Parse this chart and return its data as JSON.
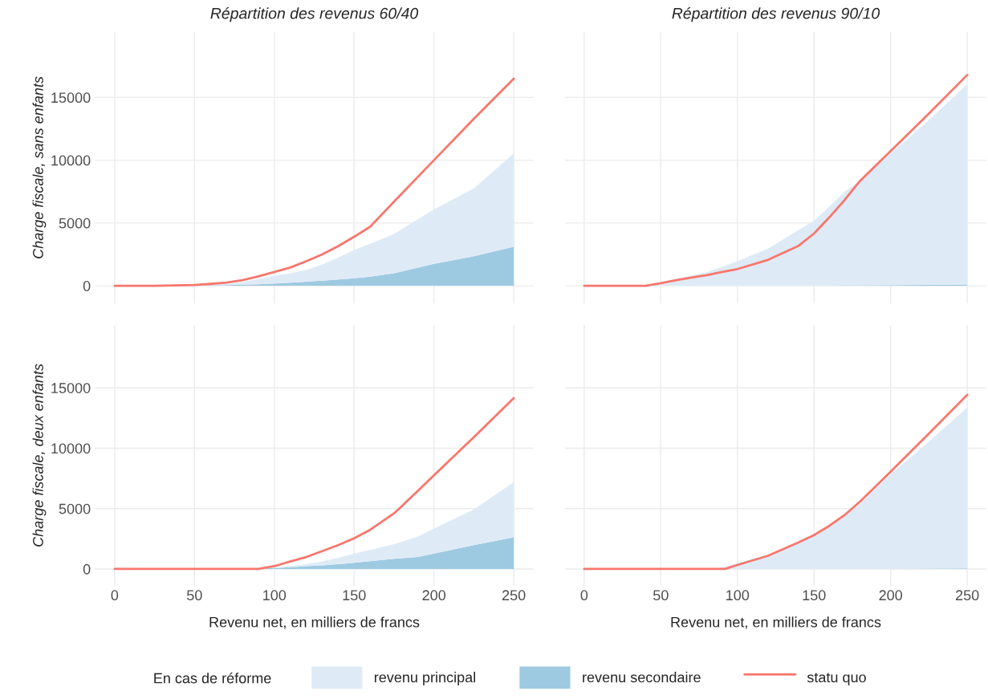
{
  "chart_data": [
    {
      "type": "area",
      "stacked": true,
      "title": "Répartition des revenus 60/40",
      "ylabel": "Charge fiscale, sans enfants",
      "legend_title": "En cas de réforme",
      "legend": "bottom",
      "grid": true,
      "tick_labels": "y",
      "x": [
        0,
        25,
        50,
        60,
        70,
        80,
        90,
        100,
        110,
        120,
        130,
        140,
        150,
        160,
        175,
        200,
        225,
        250
      ],
      "xlim": [
        -12.5,
        262.5
      ],
      "xticks": [
        0,
        50,
        100,
        150,
        200,
        250
      ],
      "ylim": [
        -1400,
        20200
      ],
      "yticks": [
        0,
        5000,
        10000,
        15000
      ],
      "series": [
        {
          "name": "revenu secondaire",
          "color": "#9ecae1",
          "values": [
            0,
            0,
            0,
            30,
            60,
            90,
            120,
            180,
            250,
            320,
            400,
            500,
            600,
            720,
            1000,
            1750,
            2350,
            3100
          ]
        },
        {
          "name": "revenu principal",
          "color": "#deebf7",
          "values": [
            0,
            0,
            30,
            50,
            90,
            210,
            430,
            620,
            750,
            930,
            1300,
            1750,
            2250,
            2630,
            3130,
            4330,
            5400,
            7440
          ]
        },
        {
          "name": "statu quo",
          "type": "line",
          "color": "#f8766d",
          "values": [
            0,
            0,
            60,
            150,
            250,
            450,
            750,
            1100,
            1450,
            1950,
            2500,
            3150,
            3900,
            4700,
            6700,
            10000,
            13300,
            16500
          ]
        }
      ]
    },
    {
      "type": "area",
      "stacked": true,
      "title": "Répartition des revenus 90/10",
      "legend": "bottom",
      "grid": true,
      "tick_labels": false,
      "x": [
        0,
        40,
        50,
        60,
        70,
        80,
        90,
        100,
        120,
        140,
        150,
        160,
        170,
        180,
        200,
        225,
        250
      ],
      "xlim": [
        -12.5,
        262.5
      ],
      "xticks": [
        0,
        50,
        100,
        150,
        200,
        250
      ],
      "ylim": [
        -1400,
        20200
      ],
      "yticks": [
        0,
        5000,
        10000,
        15000
      ],
      "series": [
        {
          "name": "revenu secondaire",
          "color": "#9ecae1",
          "values": [
            0,
            0,
            0,
            0,
            0,
            0,
            0,
            0,
            0,
            0,
            20,
            20,
            30,
            30,
            50,
            70,
            100
          ]
        },
        {
          "name": "revenu principal",
          "color": "#deebf7",
          "values": [
            0,
            0,
            250,
            540,
            800,
            1100,
            1500,
            1950,
            2960,
            4440,
            5160,
            6280,
            7470,
            8320,
            10450,
            13130,
            15940
          ]
        },
        {
          "name": "statu quo",
          "type": "line",
          "color": "#f8766d",
          "values": [
            0,
            0,
            200,
            450,
            650,
            850,
            1100,
            1330,
            2060,
            3190,
            4160,
            5450,
            6830,
            8350,
            10720,
            13710,
            16790
          ]
        }
      ]
    },
    {
      "type": "area",
      "stacked": true,
      "ylabel": "Charge fiscale, deux enfants",
      "xlabel": "Revenu net, en milliers de francs",
      "legend": "bottom",
      "grid": true,
      "x": [
        0,
        90,
        100,
        110,
        120,
        130,
        140,
        150,
        160,
        175,
        180,
        190,
        200,
        225,
        250
      ],
      "xlim": [
        -12.5,
        262.5
      ],
      "xticks": [
        0,
        50,
        100,
        150,
        200,
        250
      ],
      "ylim": [
        -1400,
        20200
      ],
      "yticks": [
        0,
        5000,
        10000,
        15000
      ],
      "series": [
        {
          "name": "revenu secondaire",
          "color": "#9ecae1",
          "values": [
            0,
            50,
            80,
            150,
            220,
            300,
            400,
            510,
            650,
            850,
            900,
            990,
            1270,
            1970,
            2620
          ]
        },
        {
          "name": "revenu principal",
          "color": "#deebf7",
          "values": [
            0,
            0,
            20,
            100,
            180,
            320,
            530,
            760,
            930,
            1210,
            1350,
            1690,
            2060,
            2960,
            4570
          ]
        },
        {
          "name": "statu quo",
          "type": "line",
          "color": "#f8766d",
          "values": [
            0,
            0,
            230,
            620,
            990,
            1470,
            1970,
            2540,
            3240,
            4600,
            5220,
            6480,
            7750,
            10910,
            14150
          ]
        }
      ]
    },
    {
      "type": "area",
      "stacked": true,
      "xlabel": "Revenu net, en milliers de francs",
      "legend": "bottom",
      "grid": true,
      "tick_labels": "x",
      "x": [
        0,
        85,
        92,
        100,
        120,
        140,
        150,
        160,
        170,
        180,
        190,
        200,
        225,
        250
      ],
      "xlim": [
        -12.5,
        262.5
      ],
      "xticks": [
        0,
        50,
        100,
        150,
        200,
        250
      ],
      "ylim": [
        -1400,
        20200
      ],
      "yticks": [
        0,
        5000,
        10000,
        15000
      ],
      "series": [
        {
          "name": "revenu secondaire",
          "color": "#9ecae1",
          "values": [
            0,
            0,
            0,
            0,
            0,
            0,
            0,
            0,
            0,
            0,
            10,
            20,
            30,
            50
          ]
        },
        {
          "name": "revenu principal",
          "color": "#deebf7",
          "values": [
            0,
            0,
            150,
            500,
            1180,
            2250,
            2810,
            3570,
            4400,
            5400,
            6590,
            7810,
            10510,
            13330
          ]
        },
        {
          "name": "statu quo",
          "type": "line",
          "color": "#f8766d",
          "values": [
            0,
            0,
            0,
            330,
            1090,
            2200,
            2810,
            3570,
            4470,
            5580,
            6800,
            8060,
            11210,
            14420
          ]
        }
      ]
    }
  ]
}
